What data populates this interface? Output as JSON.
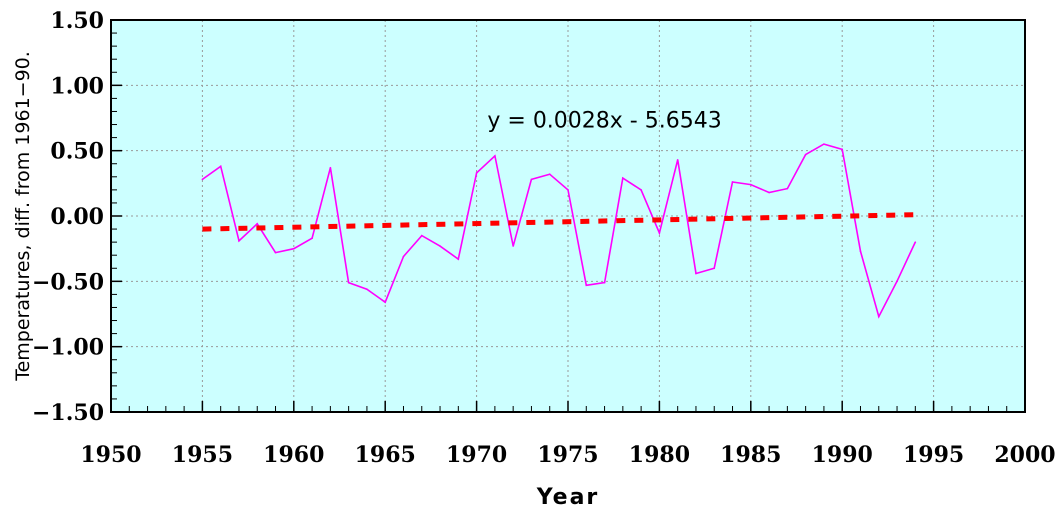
{
  "chart_data": {
    "type": "line",
    "title": "",
    "xlabel": "Year",
    "ylabel": "Temperatures, diff. from 1961−90.",
    "xlim": [
      1950,
      2000
    ],
    "ylim": [
      -1.5,
      1.5
    ],
    "x_ticks": [
      1950,
      1955,
      1960,
      1965,
      1970,
      1975,
      1980,
      1985,
      1990,
      1995,
      2000
    ],
    "x_tick_labels": [
      "1950",
      "1955",
      "1960",
      "1965",
      "1970",
      "1975",
      "1980",
      "1985",
      "1990",
      "1995",
      "2000"
    ],
    "y_ticks": [
      1.5,
      1.0,
      0.5,
      0.0,
      -0.5,
      -1.0,
      -1.5
    ],
    "y_tick_labels": [
      "1.50",
      "1.00",
      "0.50",
      "0.00",
      "−0.50",
      "−1.00",
      "−1.50"
    ],
    "grid": true,
    "plot_background": "#ccffff",
    "series": [
      {
        "color": "#ff00ff",
        "style": "solid",
        "x": [
          1955,
          1956,
          1957,
          1958,
          1959,
          1960,
          1961,
          1962,
          1963,
          1964,
          1965,
          1966,
          1967,
          1968,
          1969,
          1970,
          1971,
          1972,
          1973,
          1974,
          1975,
          1976,
          1977,
          1978,
          1979,
          1980,
          1981,
          1982,
          1983,
          1984,
          1985,
          1986,
          1987,
          1988,
          1989,
          1990,
          1991,
          1992,
          1993,
          1994
        ],
        "values": [
          0.28,
          0.38,
          -0.19,
          -0.06,
          -0.28,
          -0.25,
          -0.17,
          0.37,
          -0.51,
          -0.56,
          -0.66,
          -0.31,
          -0.15,
          -0.23,
          -0.33,
          0.33,
          0.46,
          -0.23,
          0.28,
          0.32,
          0.2,
          -0.53,
          -0.51,
          0.29,
          0.2,
          -0.13,
          0.43,
          -0.44,
          -0.4,
          0.26,
          0.24,
          0.18,
          0.21,
          0.47,
          0.55,
          0.51,
          -0.27,
          -0.77,
          -0.5,
          -0.2
        ]
      },
      {
        "color": "#ff0000",
        "style": "dashed",
        "trendline": true,
        "x": [
          1955,
          1994
        ],
        "values": [
          -0.1,
          0.01
        ]
      }
    ],
    "annotations": [
      {
        "text": "y = 0.0028x - 5.6543",
        "x": 1977,
        "y": 0.74
      }
    ]
  }
}
